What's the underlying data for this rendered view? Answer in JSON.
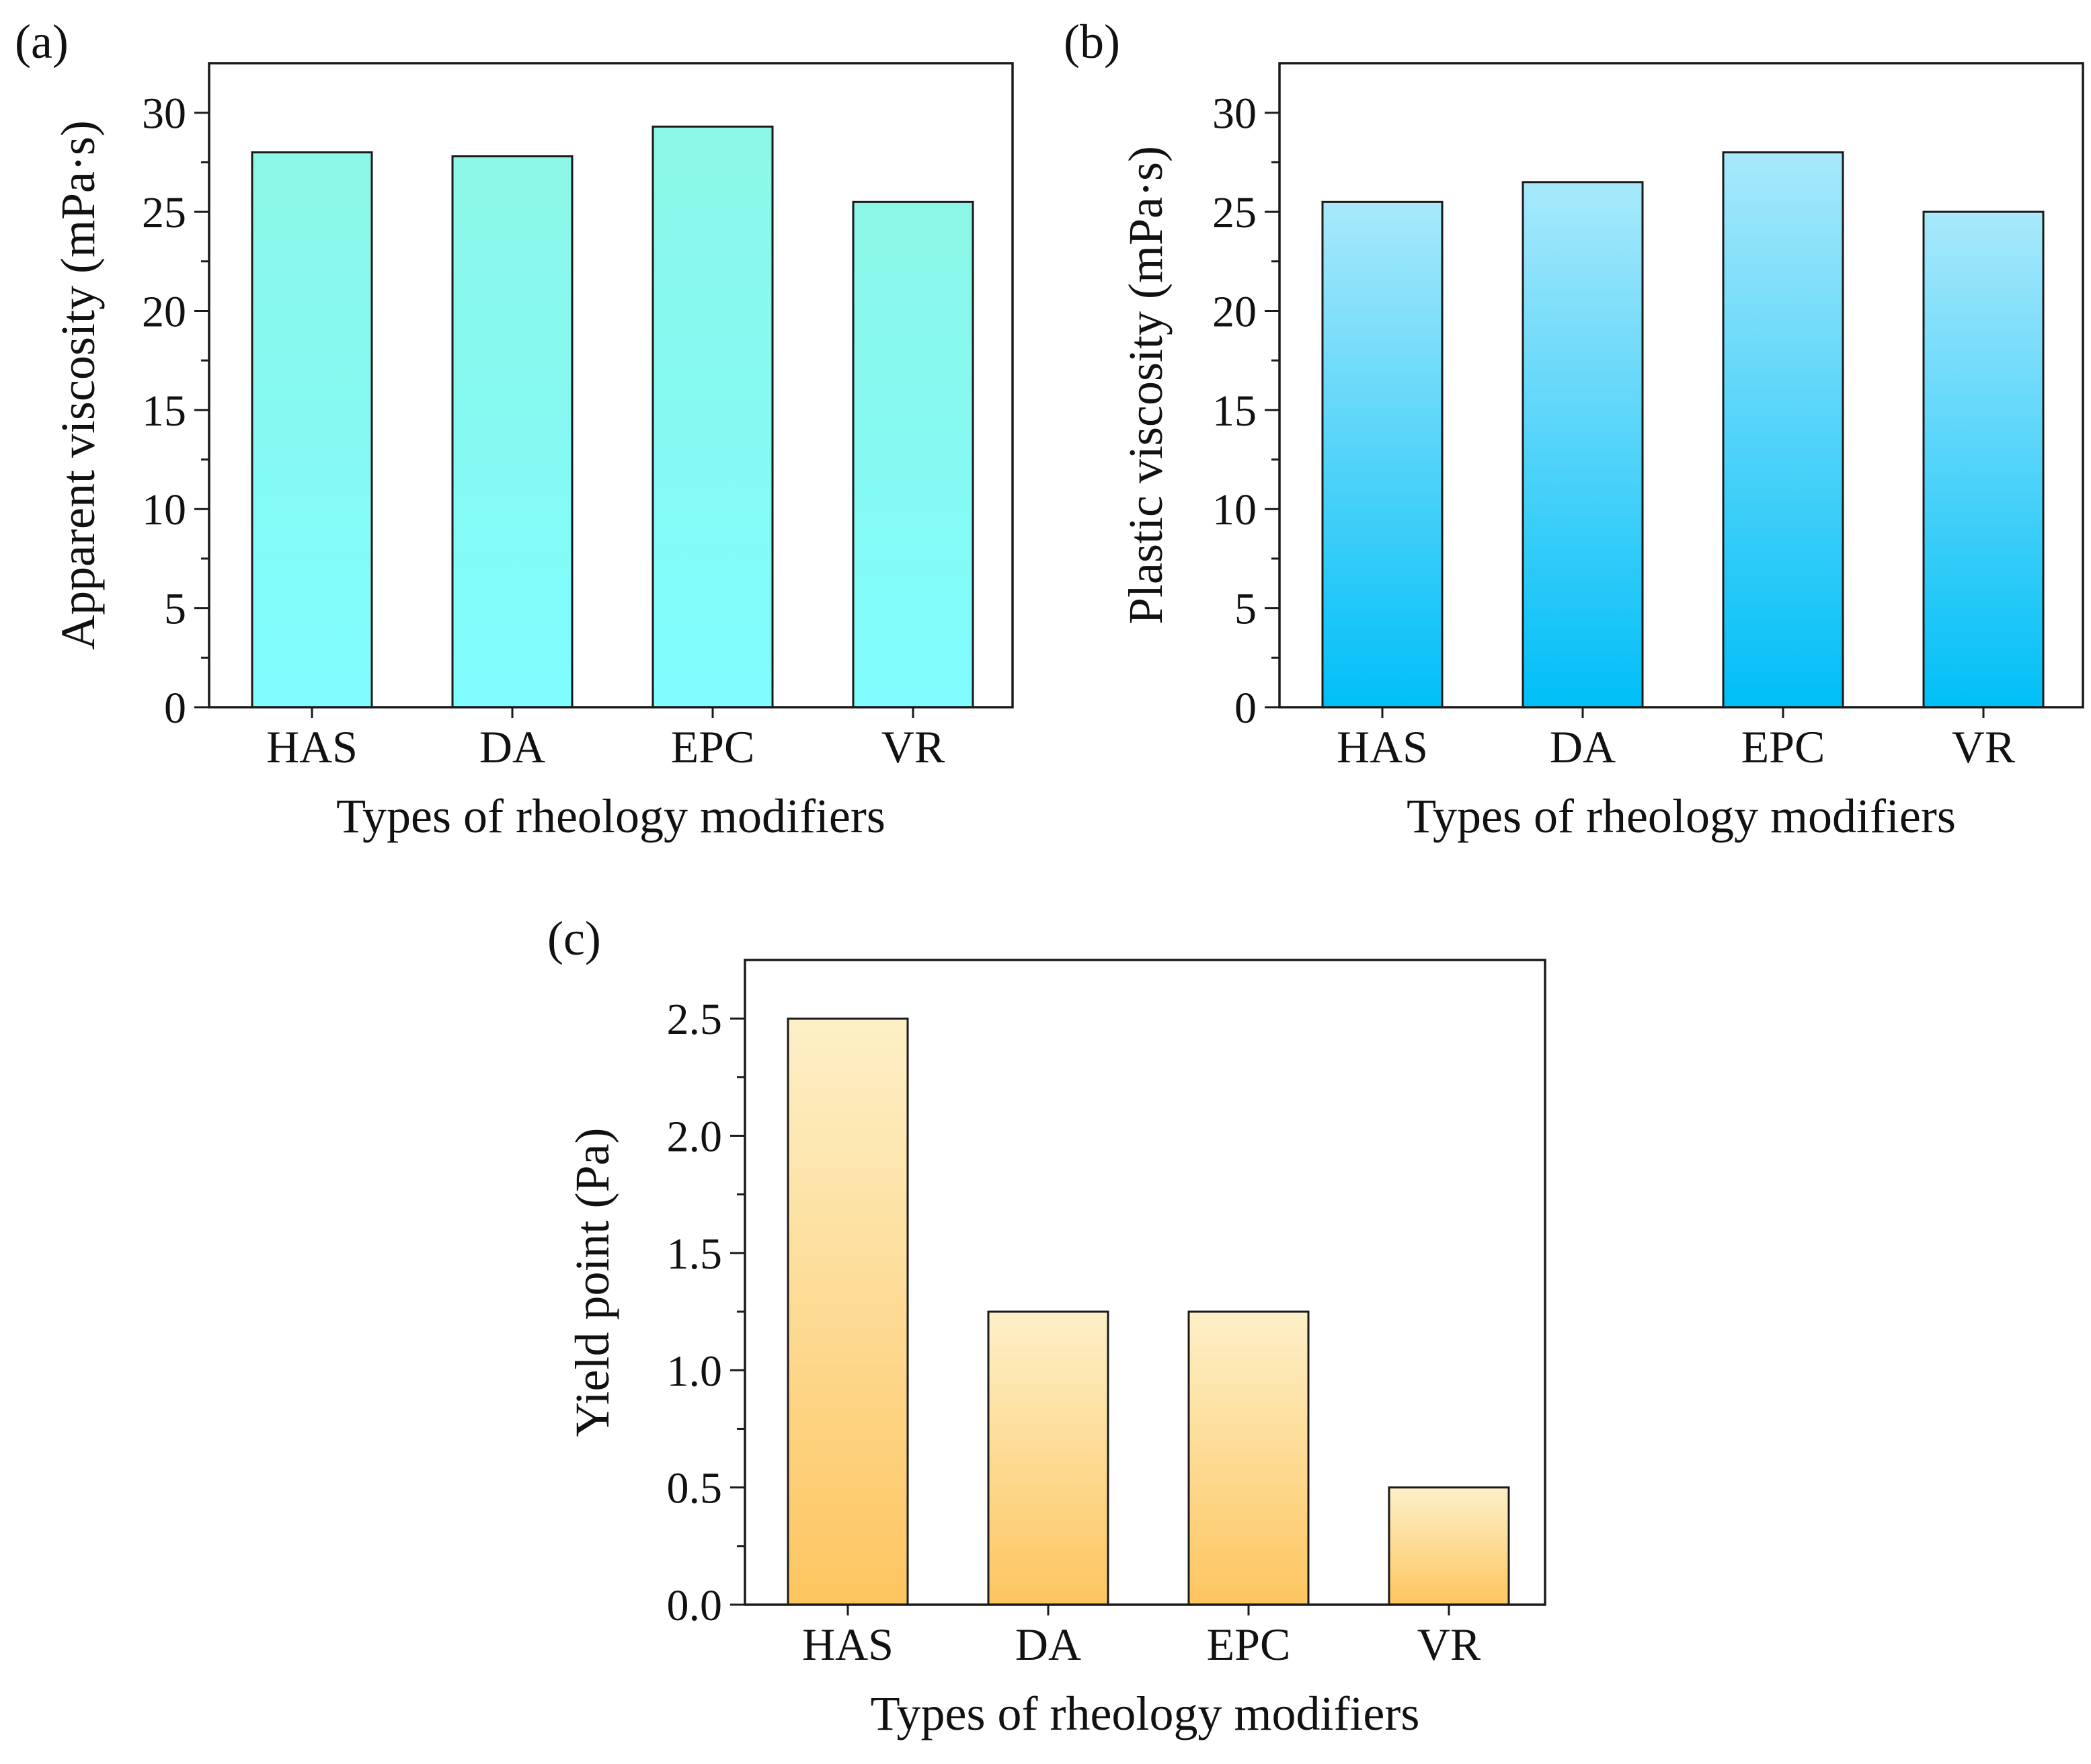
{
  "chart_data": [
    {
      "type": "bar",
      "panel_label": "(a)",
      "categories": [
        "HAS",
        "DA",
        "EPC",
        "VR"
      ],
      "values": [
        28.0,
        27.8,
        29.3,
        25.5
      ],
      "xlabel": "Types of rheology modifiers",
      "ylabel": "Apparent viscosity (mPa·s)",
      "ylim": [
        0,
        32.5
      ],
      "yticks": [
        0,
        5,
        10,
        15,
        20,
        25,
        30
      ],
      "ytick_labels": [
        "0",
        "5",
        "10",
        "15",
        "20",
        "25",
        "30"
      ],
      "minor_step": 2.5,
      "grid": false,
      "colors": {
        "top": "#8CF7E6",
        "bottom": "#7FFDFF"
      }
    },
    {
      "type": "bar",
      "panel_label": "(b)",
      "categories": [
        "HAS",
        "DA",
        "EPC",
        "VR"
      ],
      "values": [
        25.5,
        26.5,
        28.0,
        25.0
      ],
      "xlabel": "Types of rheology modifiers",
      "ylabel": "Plastic viscosity (mPa·s)",
      "ylim": [
        0,
        32.5
      ],
      "yticks": [
        0,
        5,
        10,
        15,
        20,
        25,
        30
      ],
      "ytick_labels": [
        "0",
        "5",
        "10",
        "15",
        "20",
        "25",
        "30"
      ],
      "minor_step": 2.5,
      "grid": false,
      "colors": {
        "top": "#A8E9FB",
        "bottom": "#00BFF7"
      }
    },
    {
      "type": "bar",
      "panel_label": "(c)",
      "categories": [
        "HAS",
        "DA",
        "EPC",
        "VR"
      ],
      "values": [
        2.5,
        1.25,
        1.25,
        0.5
      ],
      "xlabel": "Types of rheology modifiers",
      "ylabel": "Yield point (Pa)",
      "ylim": [
        0,
        2.75
      ],
      "yticks": [
        0,
        0.5,
        1.0,
        1.5,
        2.0,
        2.5
      ],
      "ytick_labels": [
        "0.0",
        "0.5",
        "1.0",
        "1.5",
        "2.0",
        "2.5"
      ],
      "minor_step": 0.25,
      "grid": false,
      "colors": {
        "top": "#FDF0C8",
        "bottom": "#FDC55F"
      }
    }
  ]
}
